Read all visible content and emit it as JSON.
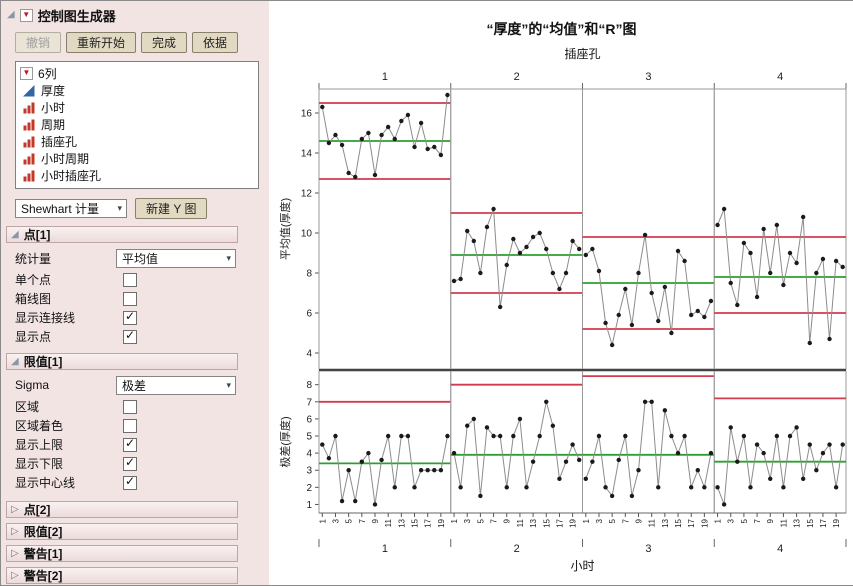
{
  "window": {
    "title": "控制图生成器"
  },
  "toolbar": {
    "undo": "撤销",
    "restart": "重新开始",
    "done": "完成",
    "by": "依据"
  },
  "columns": {
    "header": "6列",
    "items": [
      {
        "name": "厚度",
        "type": "continuous"
      },
      {
        "name": "小时",
        "type": "nominal"
      },
      {
        "name": "周期",
        "type": "nominal"
      },
      {
        "name": "插座孔",
        "type": "nominal"
      },
      {
        "name": "小时周期",
        "type": "nominal"
      },
      {
        "name": "小时插座孔",
        "type": "nominal"
      }
    ]
  },
  "chart_type": {
    "value": "Shewhart 计量",
    "new_y_button": "新建 Y 图"
  },
  "points1": {
    "title": "点[1]",
    "statistic_label": "统计量",
    "statistic_value": "平均值",
    "options": [
      {
        "label": "单个点",
        "checked": false
      },
      {
        "label": "箱线图",
        "checked": false
      },
      {
        "label": "显示连接线",
        "checked": true
      },
      {
        "label": "显示点",
        "checked": true
      }
    ]
  },
  "limits1": {
    "title": "限值[1]",
    "sigma_label": "Sigma",
    "sigma_value": "极差",
    "options": [
      {
        "label": "区域",
        "checked": false
      },
      {
        "label": "区域着色",
        "checked": false
      },
      {
        "label": "显示上限",
        "checked": true
      },
      {
        "label": "显示下限",
        "checked": true
      },
      {
        "label": "显示中心线",
        "checked": true
      }
    ]
  },
  "collapsed_sections": [
    "点[2]",
    "限值[2]",
    "警告[1]",
    "警告[2]"
  ],
  "chart_data": {
    "type": "line",
    "title": "“厚度”的“均值”和“R”图",
    "group_axis_label": "插座孔",
    "x_axis_label": "小时",
    "panels": [
      "1",
      "2",
      "3",
      "4"
    ],
    "x_ticks_labeled": [
      1,
      3,
      5,
      7,
      9,
      11,
      13,
      15,
      17,
      19
    ],
    "rows": [
      {
        "ylabel": "平均值(厚度)",
        "ylim": [
          3.2,
          17.2
        ],
        "yticks": [
          4,
          6,
          8,
          10,
          12,
          14,
          16
        ],
        "panels": [
          {
            "ucl": 16.5,
            "cl": 14.6,
            "lcl": 12.7,
            "values": [
              16.3,
              14.5,
              14.9,
              14.4,
              13.0,
              12.8,
              14.7,
              15.0,
              12.9,
              14.9,
              15.3,
              14.7,
              15.6,
              15.9,
              14.3,
              15.5,
              14.2,
              14.3,
              13.9,
              16.9
            ]
          },
          {
            "ucl": 11.0,
            "cl": 8.9,
            "lcl": 7.0,
            "values": [
              7.6,
              7.7,
              10.1,
              9.6,
              8.0,
              10.3,
              11.2,
              6.3,
              8.4,
              9.7,
              9.0,
              9.3,
              9.8,
              10.0,
              9.2,
              8.0,
              7.2,
              8.0,
              9.6,
              9.2
            ]
          },
          {
            "ucl": 9.8,
            "cl": 7.5,
            "lcl": 5.2,
            "values": [
              8.9,
              9.2,
              8.1,
              5.5,
              4.4,
              5.9,
              7.2,
              5.4,
              8.0,
              9.9,
              7.0,
              5.6,
              7.3,
              5.0,
              9.1,
              8.6,
              5.9,
              6.1,
              5.8,
              6.6
            ]
          },
          {
            "ucl": 9.8,
            "cl": 7.8,
            "lcl": 6.0,
            "values": [
              10.4,
              11.2,
              7.5,
              6.4,
              9.5,
              9.0,
              6.8,
              10.2,
              8.0,
              10.4,
              7.4,
              9.0,
              8.5,
              10.8,
              4.5,
              8.0,
              8.7,
              4.7,
              8.6,
              8.3
            ]
          }
        ]
      },
      {
        "ylabel": "极差(厚度)",
        "ylim": [
          0.5,
          8.8
        ],
        "yticks": [
          1,
          2,
          3,
          4,
          5,
          6,
          7,
          8
        ],
        "panels": [
          {
            "ucl": 7.0,
            "cl": 3.4,
            "values": [
              4.5,
              3.7,
              5.0,
              1.2,
              3.0,
              1.2,
              3.5,
              4.0,
              1.0,
              3.6,
              5.0,
              2.0,
              5.0,
              5.0,
              2.0,
              3.0,
              3.0,
              3.0,
              3.0,
              5.0
            ]
          },
          {
            "ucl": 8.0,
            "cl": 3.9,
            "values": [
              4.0,
              2.0,
              5.6,
              6.0,
              1.5,
              5.5,
              5.0,
              5.0,
              2.0,
              5.0,
              6.0,
              2.0,
              3.5,
              5.0,
              7.0,
              5.6,
              2.5,
              3.5,
              4.5,
              3.6
            ]
          },
          {
            "ucl": 8.5,
            "cl": 3.9,
            "values": [
              2.5,
              3.5,
              5.0,
              2.0,
              1.5,
              3.6,
              5.0,
              1.5,
              3.0,
              7.0,
              7.0,
              2.0,
              6.5,
              5.0,
              4.0,
              5.0,
              2.0,
              3.0,
              2.0,
              4.0
            ]
          },
          {
            "ucl": 7.2,
            "cl": 3.5,
            "values": [
              2.0,
              1.0,
              5.5,
              3.5,
              5.0,
              2.0,
              4.5,
              4.0,
              2.5,
              5.0,
              2.0,
              5.0,
              5.5,
              2.5,
              4.5,
              3.0,
              4.0,
              4.5,
              2.0,
              4.5
            ]
          }
        ]
      }
    ],
    "colors": {
      "limit": "#d23b4f",
      "center": "#2aa12e",
      "point": "#1a1a1a",
      "line": "#8c8c8c"
    }
  }
}
